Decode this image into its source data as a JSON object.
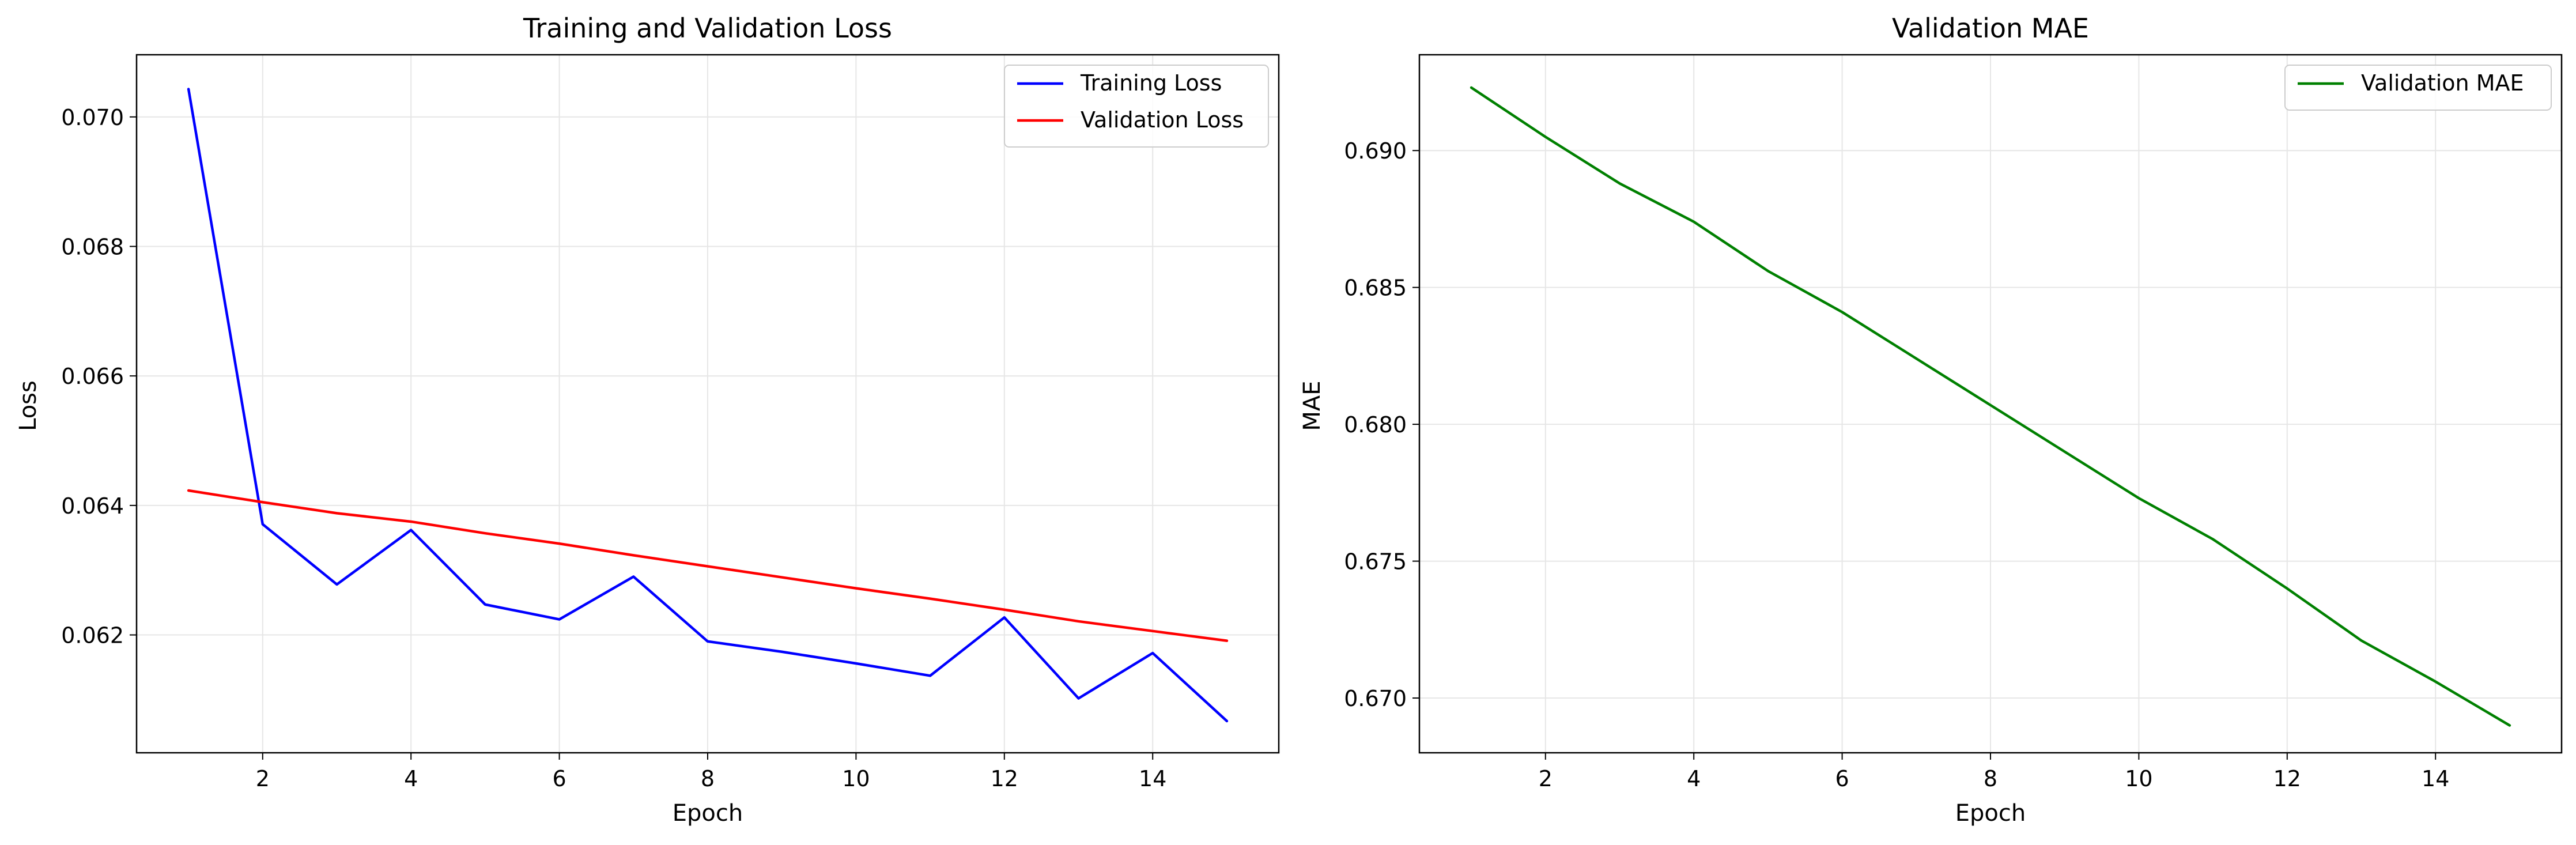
{
  "chart_data": [
    {
      "type": "line",
      "title": "Training and Validation Loss",
      "xlabel": "Epoch",
      "ylabel": "Loss",
      "x": [
        1,
        2,
        3,
        4,
        5,
        6,
        7,
        8,
        9,
        10,
        11,
        12,
        13,
        14,
        15
      ],
      "xlim": [
        0.3,
        15.7
      ],
      "ylim": [
        0.06018,
        0.07096
      ],
      "xticks": [
        2,
        4,
        6,
        8,
        10,
        12,
        14
      ],
      "yticks": [
        0.062,
        0.064,
        0.066,
        0.068,
        0.07
      ],
      "ytick_labels": [
        "0.062",
        "0.064",
        "0.066",
        "0.068",
        "0.070"
      ],
      "grid": true,
      "legend_position": "top-right",
      "series": [
        {
          "name": "Training Loss",
          "color": "#0000ff",
          "values": [
            0.07043,
            0.06371,
            0.06278,
            0.06362,
            0.06247,
            0.06224,
            0.0629,
            0.0619,
            0.06174,
            0.06156,
            0.06137,
            0.06227,
            0.06102,
            0.06172,
            0.06067
          ]
        },
        {
          "name": "Validation Loss",
          "color": "#ff0000",
          "values": [
            0.06423,
            0.06405,
            0.06388,
            0.06375,
            0.06357,
            0.06341,
            0.06323,
            0.06306,
            0.06289,
            0.06272,
            0.06256,
            0.06239,
            0.06221,
            0.06206,
            0.06191
          ]
        }
      ]
    },
    {
      "type": "line",
      "title": "Validation MAE",
      "xlabel": "Epoch",
      "ylabel": "MAE",
      "x": [
        1,
        2,
        3,
        4,
        5,
        6,
        7,
        8,
        9,
        10,
        11,
        12,
        13,
        14,
        15
      ],
      "xlim": [
        0.3,
        15.7
      ],
      "ylim": [
        0.668,
        0.6935
      ],
      "xticks": [
        2,
        4,
        6,
        8,
        10,
        12,
        14
      ],
      "yticks": [
        0.67,
        0.675,
        0.68,
        0.685,
        0.69
      ],
      "ytick_labels": [
        "0.670",
        "0.675",
        "0.680",
        "0.685",
        "0.690"
      ],
      "grid": true,
      "legend_position": "top-right",
      "series": [
        {
          "name": "Validation MAE",
          "color": "#008000",
          "values": [
            0.6923,
            0.6905,
            0.6888,
            0.6874,
            0.6856,
            0.6841,
            0.6824,
            0.6807,
            0.679,
            0.6773,
            0.6758,
            0.674,
            0.6721,
            0.6706,
            0.669
          ]
        }
      ]
    }
  ]
}
